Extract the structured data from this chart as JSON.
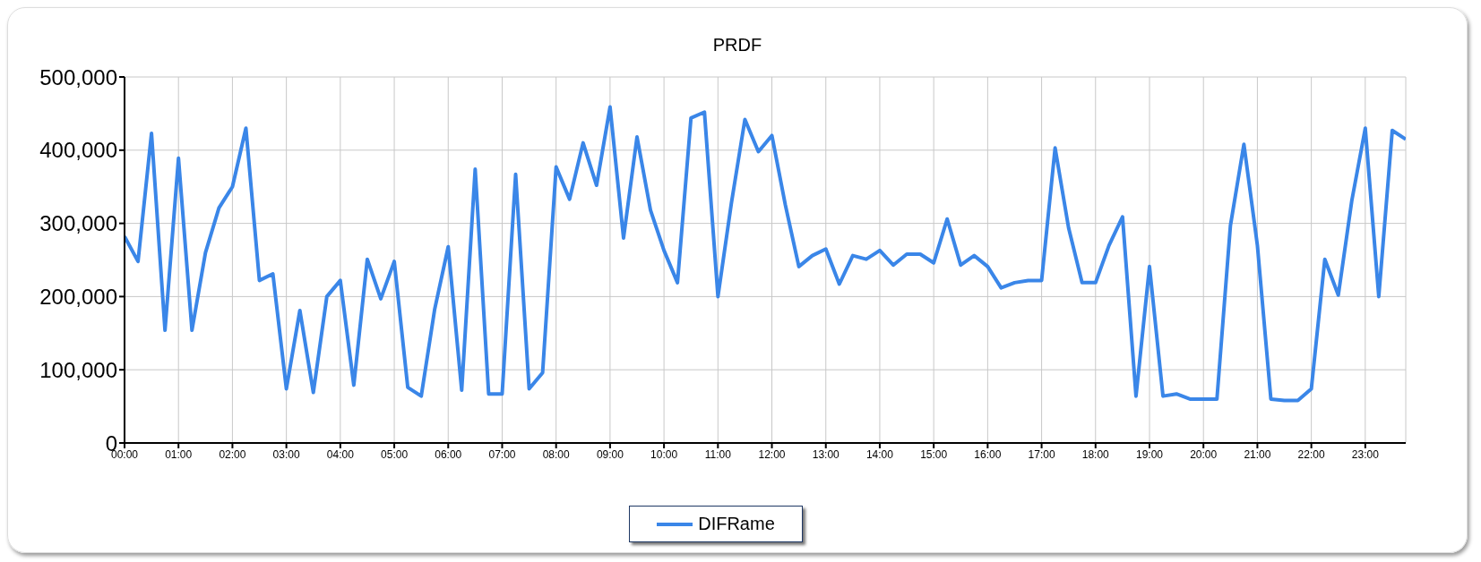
{
  "chart_data": {
    "type": "line",
    "title": "PRDF",
    "x": [
      0,
      0.25,
      0.5,
      0.75,
      1,
      1.25,
      1.5,
      1.75,
      2,
      2.25,
      2.5,
      2.75,
      3,
      3.25,
      3.5,
      3.75,
      4,
      4.25,
      4.5,
      4.75,
      5,
      5.25,
      5.5,
      5.75,
      6,
      6.25,
      6.5,
      6.75,
      7,
      7.25,
      7.5,
      7.75,
      8,
      8.25,
      8.5,
      8.75,
      9,
      9.25,
      9.5,
      9.75,
      10,
      10.25,
      10.5,
      10.75,
      11,
      11.25,
      11.5,
      11.75,
      12,
      12.25,
      12.5,
      12.75,
      13,
      13.25,
      13.5,
      13.75,
      14,
      14.25,
      14.5,
      14.75,
      15,
      15.25,
      15.5,
      15.75,
      16,
      16.25,
      16.5,
      16.75,
      17,
      17.25,
      17.5,
      17.75,
      18,
      18.25,
      18.5,
      18.75,
      19,
      19.25,
      19.5,
      19.75,
      20,
      20.25,
      20.5,
      20.75,
      21,
      21.25,
      21.5,
      21.75,
      22,
      22.25,
      22.5,
      22.75,
      23,
      23.25,
      23.5,
      23.75
    ],
    "series": [
      {
        "name": "DIFRame",
        "color": "#3a86e8",
        "values": [
          282000,
          248000,
          423000,
          154000,
          389000,
          154000,
          260000,
          321000,
          350000,
          430000,
          222000,
          231000,
          74000,
          181000,
          69000,
          200000,
          222000,
          79000,
          251000,
          197000,
          248000,
          76000,
          64000,
          183000,
          268000,
          72000,
          374000,
          67000,
          67000,
          367000,
          74000,
          96000,
          377000,
          333000,
          410000,
          352000,
          459000,
          280000,
          418000,
          318000,
          263000,
          219000,
          444000,
          452000,
          200000,
          328000,
          442000,
          398000,
          420000,
          325000,
          241000,
          256000,
          265000,
          217000,
          256000,
          251000,
          263000,
          243000,
          258000,
          258000,
          246000,
          306000,
          243000,
          256000,
          241000,
          212000,
          219000,
          222000,
          222000,
          403000,
          294000,
          219000,
          219000,
          270000,
          309000,
          64000,
          241000,
          64000,
          67000,
          60000,
          60000,
          60000,
          297000,
          408000,
          270000,
          60000,
          58000,
          58000,
          74000,
          251000,
          202000,
          331000,
          430000,
          200000,
          427000,
          415000
        ]
      }
    ],
    "xlim": [
      0,
      23.75
    ],
    "xticks": [
      {
        "value": 0,
        "label": "00:00"
      },
      {
        "value": 1,
        "label": "01:00"
      },
      {
        "value": 2,
        "label": "02:00"
      },
      {
        "value": 3,
        "label": "03:00"
      },
      {
        "value": 4,
        "label": "04:00"
      },
      {
        "value": 5,
        "label": "05:00"
      },
      {
        "value": 6,
        "label": "06:00"
      },
      {
        "value": 7,
        "label": "07:00"
      },
      {
        "value": 8,
        "label": "08:00"
      },
      {
        "value": 9,
        "label": "09:00"
      },
      {
        "value": 10,
        "label": "10:00"
      },
      {
        "value": 11,
        "label": "11:00"
      },
      {
        "value": 12,
        "label": "12:00"
      },
      {
        "value": 13,
        "label": "13:00"
      },
      {
        "value": 14,
        "label": "14:00"
      },
      {
        "value": 15,
        "label": "15:00"
      },
      {
        "value": 16,
        "label": "16:00"
      },
      {
        "value": 17,
        "label": "17:00"
      },
      {
        "value": 18,
        "label": "18:00"
      },
      {
        "value": 19,
        "label": "19:00"
      },
      {
        "value": 20,
        "label": "20:00"
      },
      {
        "value": 21,
        "label": "21:00"
      },
      {
        "value": 22,
        "label": "22:00"
      },
      {
        "value": 23,
        "label": "23:00"
      }
    ],
    "ylim": [
      0,
      500000
    ],
    "yticks": [
      0,
      {
        "value": 100000,
        "label": "100,000"
      },
      {
        "value": 200000,
        "label": "200,000"
      },
      {
        "value": 300000,
        "label": "300,000"
      },
      {
        "value": 400000,
        "label": "400,000"
      },
      {
        "value": 500000,
        "label": "500,000"
      }
    ],
    "grid": true,
    "legend": "bottom",
    "marker": "none",
    "line_style": "solid"
  }
}
